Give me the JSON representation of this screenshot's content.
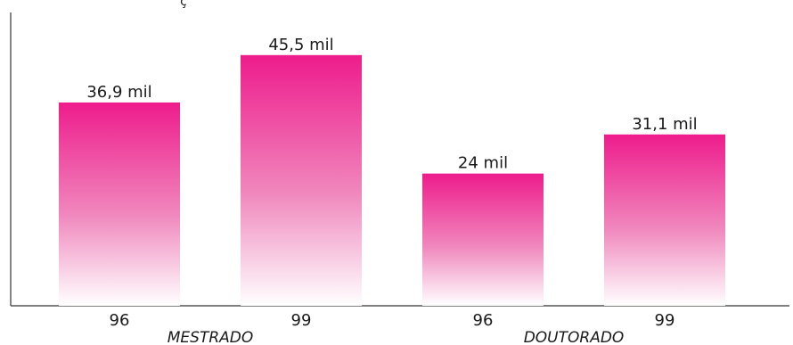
{
  "chart_data": {
    "type": "bar",
    "categories": [
      "96",
      "99",
      "96",
      "99"
    ],
    "groups": [
      {
        "name": "MESTRADO",
        "categories": [
          "96",
          "99"
        ]
      },
      {
        "name": "DOUTORADO",
        "categories": [
          "96",
          "99"
        ]
      }
    ],
    "values": [
      36.9,
      45.5,
      24,
      31.1
    ],
    "data_labels": [
      "36,9 mil",
      "45,5 mil",
      "24 mil",
      "31,1 mil"
    ],
    "title": "",
    "top_fragment": "ç",
    "xlabel": "",
    "ylabel": "",
    "ylim": [
      0,
      55.5
    ],
    "grid": false,
    "legend": "none",
    "bar_color_top": "#ee1c8c",
    "bar_color_bottom": "#ffffff",
    "axis_color": "#333333"
  }
}
